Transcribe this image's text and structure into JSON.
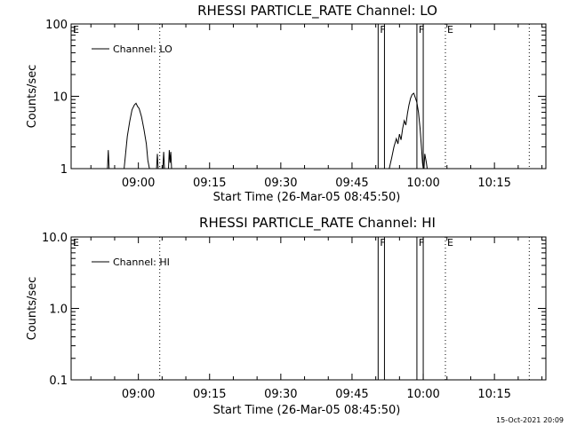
{
  "footer_timestamp": "15-Oct-2021 20:09",
  "chart_data": [
    {
      "type": "line",
      "title": "RHESSI PARTICLE_RATE Channel: LO",
      "xlabel": "Start Time (26-Mar-05 08:45:50)",
      "ylabel": "Counts/sec",
      "y_scale": "log",
      "xlim": [
        "08:45:50",
        "10:25:50"
      ],
      "ylim": [
        1,
        100
      ],
      "x_ticks": [
        "09:00",
        "09:15",
        "09:30",
        "09:45",
        "10:00",
        "10:15"
      ],
      "y_ticks": [
        "1",
        "10",
        "100"
      ],
      "legend": {
        "position": "top-left",
        "label": "Channel: LO"
      },
      "event_markers": [
        {
          "label": "E",
          "time": "08:45:50",
          "style": "dotted"
        },
        {
          "label": "",
          "time": "09:04:30",
          "style": "dotted"
        },
        {
          "label": "F",
          "time": "09:50:30",
          "style": "solid"
        },
        {
          "label": "",
          "time": "09:51:50",
          "style": "solid"
        },
        {
          "label": "F",
          "time": "09:58:40",
          "style": "solid"
        },
        {
          "label": "",
          "time": "10:00:00",
          "style": "solid"
        },
        {
          "label": "E",
          "time": "10:04:40",
          "style": "dotted"
        },
        {
          "label": "",
          "time": "10:22:20",
          "style": "dotted"
        }
      ],
      "series": [
        {
          "name": "Channel: LO",
          "segments": [
            [
              [
                "08:53:30",
                1
              ],
              [
                "08:53:40",
                1.8
              ],
              [
                "08:53:50",
                1
              ]
            ],
            [
              [
                "08:57:00",
                1
              ],
              [
                "08:57:40",
                2.8
              ],
              [
                "08:58:10",
                4.5
              ],
              [
                "08:58:40",
                6.5
              ],
              [
                "08:59:10",
                7.6
              ],
              [
                "08:59:30",
                8.0
              ],
              [
                "08:59:50",
                7.2
              ],
              [
                "09:00:10",
                6.8
              ],
              [
                "09:00:40",
                5.2
              ],
              [
                "09:01:10",
                3.5
              ],
              [
                "09:01:40",
                2.2
              ],
              [
                "09:02:00",
                1.3
              ],
              [
                "09:02:20",
                1
              ]
            ],
            [
              [
                "09:03:50",
                1
              ],
              [
                "09:04:00",
                1.6
              ],
              [
                "09:04:10",
                1
              ]
            ],
            [
              [
                "09:05:10",
                1
              ],
              [
                "09:05:20",
                1.7
              ],
              [
                "09:05:30",
                1
              ]
            ],
            [
              [
                "09:06:20",
                1
              ],
              [
                "09:06:30",
                1.8
              ],
              [
                "09:06:40",
                1.2
              ],
              [
                "09:06:50",
                1.7
              ],
              [
                "09:07:00",
                1
              ]
            ],
            [
              [
                "09:52:50",
                1
              ],
              [
                "09:53:20",
                1.4
              ],
              [
                "09:53:50",
                2.0
              ],
              [
                "09:54:20",
                2.6
              ],
              [
                "09:54:40",
                2.2
              ],
              [
                "09:55:00",
                3.0
              ],
              [
                "09:55:20",
                2.5
              ],
              [
                "09:55:40",
                3.6
              ],
              [
                "09:56:00",
                4.6
              ],
              [
                "09:56:20",
                4.0
              ],
              [
                "09:56:40",
                5.8
              ],
              [
                "09:57:00",
                7.6
              ],
              [
                "09:57:20",
                9.4
              ],
              [
                "09:57:40",
                10.6
              ],
              [
                "09:58:00",
                11.0
              ],
              [
                "09:58:20",
                9.6
              ],
              [
                "09:58:40",
                8.2
              ],
              [
                "09:59:00",
                6.0
              ],
              [
                "09:59:20",
                3.6
              ],
              [
                "09:59:40",
                1.8
              ],
              [
                "09:59:50",
                1.2
              ],
              [
                "10:00:00",
                1
              ]
            ],
            [
              [
                "10:00:10",
                1
              ],
              [
                "10:00:20",
                1.6
              ],
              [
                "10:00:40",
                1.2
              ],
              [
                "10:00:50",
                1
              ]
            ]
          ]
        }
      ]
    },
    {
      "type": "line",
      "title": "RHESSI PARTICLE_RATE Channel: HI",
      "xlabel": "Start Time (26-Mar-05 08:45:50)",
      "ylabel": "Counts/sec",
      "y_scale": "log",
      "xlim": [
        "08:45:50",
        "10:25:50"
      ],
      "ylim": [
        0.1,
        10
      ],
      "x_ticks": [
        "09:00",
        "09:15",
        "09:30",
        "09:45",
        "10:00",
        "10:15"
      ],
      "y_ticks": [
        "0.1",
        "1.0",
        "10.0"
      ],
      "legend": {
        "position": "top-left",
        "label": "Channel: HI"
      },
      "event_markers": [
        {
          "label": "E",
          "time": "08:45:50",
          "style": "dotted"
        },
        {
          "label": "",
          "time": "09:04:30",
          "style": "dotted"
        },
        {
          "label": "F",
          "time": "09:50:30",
          "style": "solid"
        },
        {
          "label": "",
          "time": "09:51:50",
          "style": "solid"
        },
        {
          "label": "F",
          "time": "09:58:40",
          "style": "solid"
        },
        {
          "label": "",
          "time": "10:00:00",
          "style": "solid"
        },
        {
          "label": "E",
          "time": "10:04:40",
          "style": "dotted"
        },
        {
          "label": "",
          "time": "10:22:20",
          "style": "dotted"
        }
      ],
      "series": [
        {
          "name": "Channel: HI",
          "segments": []
        }
      ]
    }
  ]
}
